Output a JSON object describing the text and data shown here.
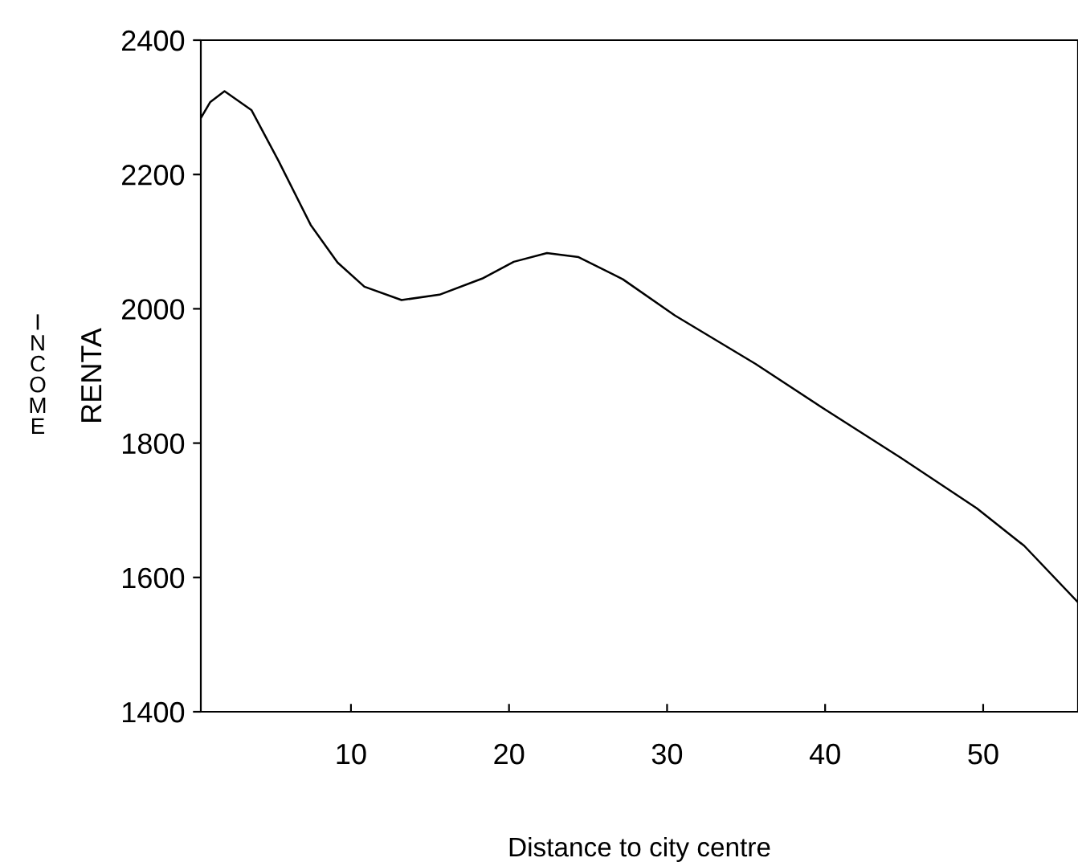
{
  "chart_data": {
    "type": "line",
    "xlabel": "Distance to city centre",
    "ylabel": "RENTA",
    "annotations": [
      "INCOME"
    ],
    "x": [
      0.5,
      1.1,
      2.0,
      3.7,
      5.4,
      7.45,
      9.15,
      10.85,
      13.2,
      15.6,
      18.3,
      20.3,
      22.4,
      24.4,
      27.2,
      30.5,
      35.6,
      40.0,
      44.8,
      49.6,
      52.6,
      56.0
    ],
    "series": [
      {
        "color": "#000000",
        "values": [
          2284,
          2308,
          2324,
          2296,
          2221,
          2125,
          2069,
          2033,
          2013,
          2021,
          2045,
          2070,
          2083,
          2077,
          2044,
          1990,
          1918,
          1850,
          1778,
          1703,
          1647,
          1563
        ]
      }
    ],
    "xlim": [
      0.5,
      56
    ],
    "ylim": [
      1400,
      2400
    ],
    "xticks": [
      10,
      20,
      30,
      40,
      50
    ],
    "yticks": [
      1400,
      1600,
      1800,
      2000,
      2200,
      2400
    ],
    "grid": false,
    "legend": false,
    "marker": "none",
    "line_style": "solid"
  }
}
